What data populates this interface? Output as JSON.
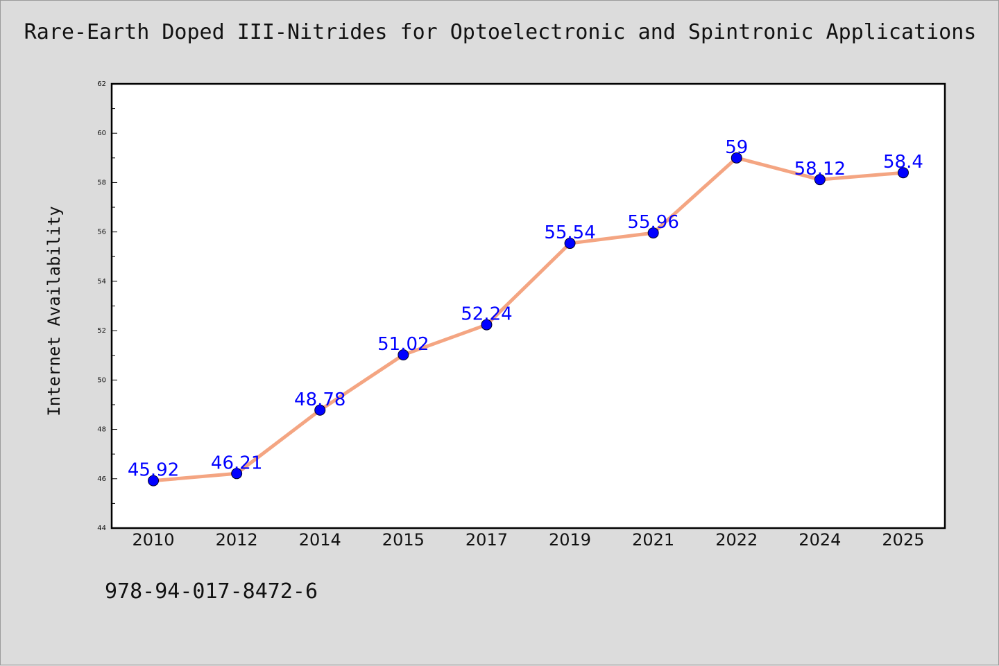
{
  "title": "Rare-Earth Doped III-Nitrides for Optoelectronic and Spintronic Applications",
  "footer_text": "978-94-017-8472-6",
  "colors": {
    "background": "#dcdcdc",
    "plot_background": "#ffffff",
    "line": "#f4a582",
    "marker": "#0000ff",
    "label": "#0000ff"
  },
  "chart_data": {
    "type": "line",
    "title": "Rare-Earth Doped III-Nitrides for Optoelectronic and Spintronic Applications",
    "xlabel": "",
    "ylabel": "Internet Availability",
    "categories": [
      "2010",
      "2012",
      "2014",
      "2015",
      "2017",
      "2019",
      "2021",
      "2022",
      "2024",
      "2025"
    ],
    "series": [
      {
        "values": [
          45.92,
          46.21,
          48.78,
          51.02,
          52.24,
          55.54,
          55.96,
          59,
          58.12,
          58.4
        ],
        "labels": [
          "45.92",
          "46.21",
          "48.78",
          "51.02",
          "52.24",
          "55.54",
          "55.96",
          "59",
          "58.12",
          "58.4"
        ]
      }
    ],
    "ylim": [
      44,
      62
    ],
    "yticks": [
      44,
      46,
      48,
      50,
      52,
      54,
      56,
      58,
      60,
      62
    ],
    "grid": false,
    "legend": "none"
  }
}
